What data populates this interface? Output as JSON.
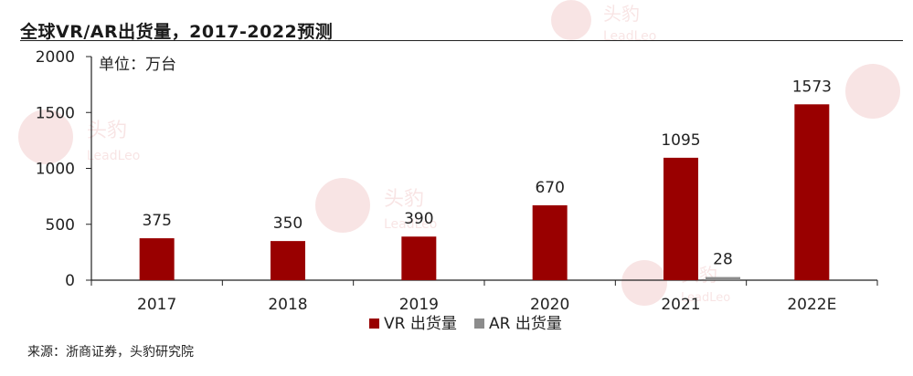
{
  "title": "全球VR/AR出货量，2017-2022预测",
  "source": "来源：浙商证券，头豹研究院",
  "watermark": {
    "cn": "头豹",
    "en": "LeadLeo"
  },
  "colors": {
    "vr": "#990000",
    "ar": "#8c8c8c",
    "axis": "#222222"
  },
  "chart_data": {
    "type": "bar",
    "unit_label": "单位：万台",
    "categories": [
      "2017",
      "2018",
      "2019",
      "2020",
      "2021",
      "2022E"
    ],
    "series": [
      {
        "name": "VR 出货量",
        "values": [
          375,
          350,
          390,
          670,
          1095,
          1573
        ]
      },
      {
        "name": "AR 出货量",
        "values": [
          null,
          null,
          null,
          null,
          28,
          null
        ]
      }
    ],
    "ylim": [
      0,
      2000
    ],
    "yticks": [
      "0",
      "500",
      "1000",
      "1500",
      "2000"
    ],
    "grid": false,
    "legend_position": "bottom"
  }
}
